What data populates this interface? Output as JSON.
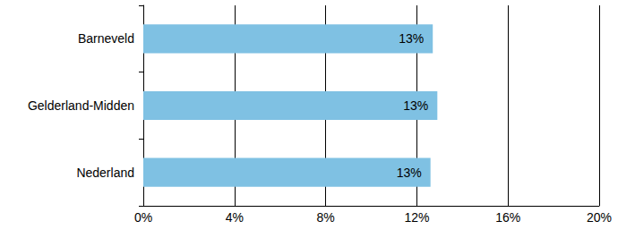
{
  "chart_data": {
    "type": "bar",
    "orientation": "horizontal",
    "categories": [
      "Barneveld",
      "Gelderland-Midden",
      "Nederland"
    ],
    "values": [
      12.7,
      12.9,
      12.6
    ],
    "value_labels": [
      "13%",
      "13%",
      "13%"
    ],
    "color": "#7fc1e3",
    "xlim": [
      0,
      20
    ],
    "xticks": [
      {
        "value": 0,
        "label": "0%"
      },
      {
        "value": 4,
        "label": "4%"
      },
      {
        "value": 8,
        "label": "8%"
      },
      {
        "value": 12,
        "label": "12%"
      },
      {
        "value": 16,
        "label": "16%"
      },
      {
        "value": 20,
        "label": "20%"
      }
    ],
    "grid": true,
    "data_labels": true
  }
}
